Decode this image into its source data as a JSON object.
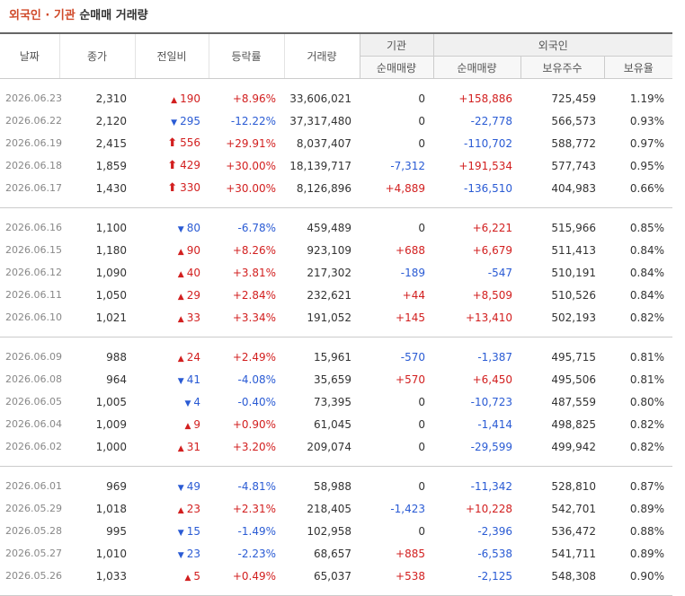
{
  "title": {
    "part1": "외국인 · 기관",
    "part2": "순매매 거래량"
  },
  "headers": {
    "date": "날짜",
    "close": "종가",
    "diff": "전일비",
    "rate": "등락률",
    "volume": "거래량",
    "inst_group": "기관",
    "foreign_group": "외국인",
    "inst_net": "순매매량",
    "foreign_net": "순매매량",
    "foreign_hold": "보유주수",
    "foreign_rate": "보유율"
  },
  "colors": {
    "up": "#d21f1f",
    "down": "#2a5bd4"
  },
  "groups": [
    [
      {
        "date": "2026.06.23",
        "close": "2,310",
        "dir": "up",
        "arrow": "▲",
        "diff": "190",
        "rate": "+8.96%",
        "volume": "33,606,021",
        "inst": "0",
        "inst_dir": "",
        "fnet": "+158,886",
        "fnet_dir": "up",
        "fhold": "725,459",
        "frate": "1.19%"
      },
      {
        "date": "2026.06.22",
        "close": "2,120",
        "dir": "dn",
        "arrow": "▼",
        "diff": "295",
        "rate": "-12.22%",
        "volume": "37,317,480",
        "inst": "0",
        "inst_dir": "",
        "fnet": "-22,778",
        "fnet_dir": "dn",
        "fhold": "566,573",
        "frate": "0.93%"
      },
      {
        "date": "2026.06.19",
        "close": "2,415",
        "dir": "up",
        "arrow": "⬆",
        "diff": "556",
        "rate": "+29.91%",
        "volume": "8,037,407",
        "inst": "0",
        "inst_dir": "",
        "fnet": "-110,702",
        "fnet_dir": "dn",
        "fhold": "588,772",
        "frate": "0.97%"
      },
      {
        "date": "2026.06.18",
        "close": "1,859",
        "dir": "up",
        "arrow": "⬆",
        "diff": "429",
        "rate": "+30.00%",
        "volume": "18,139,717",
        "inst": "-7,312",
        "inst_dir": "dn",
        "fnet": "+191,534",
        "fnet_dir": "up",
        "fhold": "577,743",
        "frate": "0.95%"
      },
      {
        "date": "2026.06.17",
        "close": "1,430",
        "dir": "up",
        "arrow": "⬆",
        "diff": "330",
        "rate": "+30.00%",
        "volume": "8,126,896",
        "inst": "+4,889",
        "inst_dir": "up",
        "fnet": "-136,510",
        "fnet_dir": "dn",
        "fhold": "404,983",
        "frate": "0.66%"
      }
    ],
    [
      {
        "date": "2026.06.16",
        "close": "1,100",
        "dir": "dn",
        "arrow": "▼",
        "diff": "80",
        "rate": "-6.78%",
        "volume": "459,489",
        "inst": "0",
        "inst_dir": "",
        "fnet": "+6,221",
        "fnet_dir": "up",
        "fhold": "515,966",
        "frate": "0.85%"
      },
      {
        "date": "2026.06.15",
        "close": "1,180",
        "dir": "up",
        "arrow": "▲",
        "diff": "90",
        "rate": "+8.26%",
        "volume": "923,109",
        "inst": "+688",
        "inst_dir": "up",
        "fnet": "+6,679",
        "fnet_dir": "up",
        "fhold": "511,413",
        "frate": "0.84%"
      },
      {
        "date": "2026.06.12",
        "close": "1,090",
        "dir": "up",
        "arrow": "▲",
        "diff": "40",
        "rate": "+3.81%",
        "volume": "217,302",
        "inst": "-189",
        "inst_dir": "dn",
        "fnet": "-547",
        "fnet_dir": "dn",
        "fhold": "510,191",
        "frate": "0.84%"
      },
      {
        "date": "2026.06.11",
        "close": "1,050",
        "dir": "up",
        "arrow": "▲",
        "diff": "29",
        "rate": "+2.84%",
        "volume": "232,621",
        "inst": "+44",
        "inst_dir": "up",
        "fnet": "+8,509",
        "fnet_dir": "up",
        "fhold": "510,526",
        "frate": "0.84%"
      },
      {
        "date": "2026.06.10",
        "close": "1,021",
        "dir": "up",
        "arrow": "▲",
        "diff": "33",
        "rate": "+3.34%",
        "volume": "191,052",
        "inst": "+145",
        "inst_dir": "up",
        "fnet": "+13,410",
        "fnet_dir": "up",
        "fhold": "502,193",
        "frate": "0.82%"
      }
    ],
    [
      {
        "date": "2026.06.09",
        "close": "988",
        "dir": "up",
        "arrow": "▲",
        "diff": "24",
        "rate": "+2.49%",
        "volume": "15,961",
        "inst": "-570",
        "inst_dir": "dn",
        "fnet": "-1,387",
        "fnet_dir": "dn",
        "fhold": "495,715",
        "frate": "0.81%"
      },
      {
        "date": "2026.06.08",
        "close": "964",
        "dir": "dn",
        "arrow": "▼",
        "diff": "41",
        "rate": "-4.08%",
        "volume": "35,659",
        "inst": "+570",
        "inst_dir": "up",
        "fnet": "+6,450",
        "fnet_dir": "up",
        "fhold": "495,506",
        "frate": "0.81%"
      },
      {
        "date": "2026.06.05",
        "close": "1,005",
        "dir": "dn",
        "arrow": "▼",
        "diff": "4",
        "rate": "-0.40%",
        "volume": "73,395",
        "inst": "0",
        "inst_dir": "",
        "fnet": "-10,723",
        "fnet_dir": "dn",
        "fhold": "487,559",
        "frate": "0.80%"
      },
      {
        "date": "2026.06.04",
        "close": "1,009",
        "dir": "up",
        "arrow": "▲",
        "diff": "9",
        "rate": "+0.90%",
        "volume": "61,045",
        "inst": "0",
        "inst_dir": "",
        "fnet": "-1,414",
        "fnet_dir": "dn",
        "fhold": "498,825",
        "frate": "0.82%"
      },
      {
        "date": "2026.06.02",
        "close": "1,000",
        "dir": "up",
        "arrow": "▲",
        "diff": "31",
        "rate": "+3.20%",
        "volume": "209,074",
        "inst": "0",
        "inst_dir": "",
        "fnet": "-29,599",
        "fnet_dir": "dn",
        "fhold": "499,942",
        "frate": "0.82%"
      }
    ],
    [
      {
        "date": "2026.06.01",
        "close": "969",
        "dir": "dn",
        "arrow": "▼",
        "diff": "49",
        "rate": "-4.81%",
        "volume": "58,988",
        "inst": "0",
        "inst_dir": "",
        "fnet": "-11,342",
        "fnet_dir": "dn",
        "fhold": "528,810",
        "frate": "0.87%"
      },
      {
        "date": "2026.05.29",
        "close": "1,018",
        "dir": "up",
        "arrow": "▲",
        "diff": "23",
        "rate": "+2.31%",
        "volume": "218,405",
        "inst": "-1,423",
        "inst_dir": "dn",
        "fnet": "+10,228",
        "fnet_dir": "up",
        "fhold": "542,701",
        "frate": "0.89%"
      },
      {
        "date": "2026.05.28",
        "close": "995",
        "dir": "dn",
        "arrow": "▼",
        "diff": "15",
        "rate": "-1.49%",
        "volume": "102,958",
        "inst": "0",
        "inst_dir": "",
        "fnet": "-2,396",
        "fnet_dir": "dn",
        "fhold": "536,472",
        "frate": "0.88%"
      },
      {
        "date": "2026.05.27",
        "close": "1,010",
        "dir": "dn",
        "arrow": "▼",
        "diff": "23",
        "rate": "-2.23%",
        "volume": "68,657",
        "inst": "+885",
        "inst_dir": "up",
        "fnet": "-6,538",
        "fnet_dir": "dn",
        "fhold": "541,711",
        "frate": "0.89%"
      },
      {
        "date": "2026.05.26",
        "close": "1,033",
        "dir": "up",
        "arrow": "▲",
        "diff": "5",
        "rate": "+0.49%",
        "volume": "65,037",
        "inst": "+538",
        "inst_dir": "up",
        "fnet": "-2,125",
        "fnet_dir": "dn",
        "fhold": "548,308",
        "frate": "0.90%"
      }
    ]
  ]
}
